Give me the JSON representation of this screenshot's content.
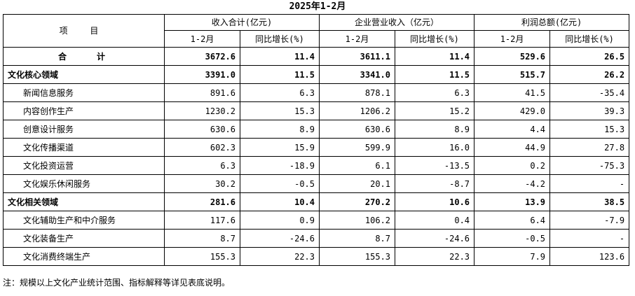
{
  "title": "2025年1-2月",
  "header": {
    "item": "项  目",
    "groups": [
      "收入合计(亿元)",
      "企业营业收入（亿元）",
      "利润总额(亿元)"
    ],
    "subcols": [
      "1-2月",
      "同比增长(%)",
      "1-2月",
      "同比增长(%)",
      "1-2月",
      "同比增长(%)"
    ]
  },
  "total": {
    "label_left": "合",
    "label_right": "计",
    "values": [
      "3672.6",
      "11.4",
      "3611.1",
      "11.4",
      "529.6",
      "26.5"
    ]
  },
  "rows": [
    {
      "label": "文化核心领域",
      "bold": true,
      "indent": false,
      "values": [
        "3391.0",
        "11.5",
        "3341.0",
        "11.5",
        "515.7",
        "26.2"
      ]
    },
    {
      "label": "新闻信息服务",
      "bold": false,
      "indent": true,
      "values": [
        "891.6",
        "6.3",
        "878.1",
        "6.3",
        "41.5",
        "-35.4"
      ]
    },
    {
      "label": "内容创作生产",
      "bold": false,
      "indent": true,
      "values": [
        "1230.2",
        "15.3",
        "1206.2",
        "15.2",
        "429.0",
        "39.3"
      ]
    },
    {
      "label": "创意设计服务",
      "bold": false,
      "indent": true,
      "values": [
        "630.6",
        "8.9",
        "630.6",
        "8.9",
        "4.4",
        "15.3"
      ]
    },
    {
      "label": "文化传播渠道",
      "bold": false,
      "indent": true,
      "values": [
        "602.3",
        "15.9",
        "599.9",
        "16.0",
        "44.9",
        "27.8"
      ]
    },
    {
      "label": "文化投资运营",
      "bold": false,
      "indent": true,
      "values": [
        "6.3",
        "-18.9",
        "6.1",
        "-13.5",
        "0.2",
        "-75.3"
      ]
    },
    {
      "label": "文化娱乐休闲服务",
      "bold": false,
      "indent": true,
      "values": [
        "30.2",
        "-0.5",
        "20.1",
        "-8.7",
        "-4.2",
        "-"
      ]
    },
    {
      "label": "文化相关领域",
      "bold": true,
      "indent": false,
      "values": [
        "281.6",
        "10.4",
        "270.2",
        "10.6",
        "13.9",
        "38.5"
      ]
    },
    {
      "label": "文化辅助生产和中介服务",
      "bold": false,
      "indent": true,
      "values": [
        "117.6",
        "0.9",
        "106.2",
        "0.4",
        "6.4",
        "-7.9"
      ]
    },
    {
      "label": "文化装备生产",
      "bold": false,
      "indent": true,
      "values": [
        "8.7",
        "-24.6",
        "8.7",
        "-24.6",
        "-0.5",
        "-"
      ]
    },
    {
      "label": "文化消费终端生产",
      "bold": false,
      "indent": true,
      "values": [
        "155.3",
        "22.3",
        "155.3",
        "22.3",
        "7.9",
        "123.6"
      ]
    }
  ],
  "note": "注：规模以上文化产业统计范围、指标解释等详见表底说明。"
}
